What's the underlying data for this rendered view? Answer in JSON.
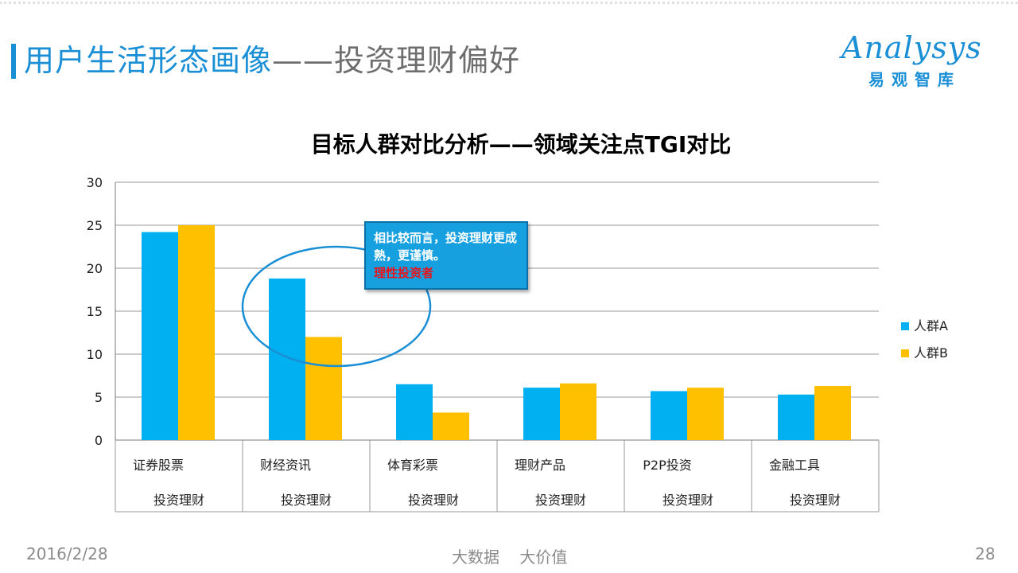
{
  "header": {
    "title_main": "用户生活形态画像",
    "title_sub": "——投资理财偏好"
  },
  "logo": {
    "text": "Analysys",
    "cn": "易观智库"
  },
  "callout": {
    "line1": "相比较而言，投资理财更成熟，更谨慎。",
    "line2": "理性投资者"
  },
  "footer": {
    "date": "2016/2/28",
    "center": "大数据    大价值",
    "page": "28"
  },
  "colors": {
    "accent": "#1a8fd6",
    "series_a": "#00b0f0",
    "series_b": "#ffc000",
    "callout_bg": "#16a0e0",
    "callout_highlight": "#e8141c"
  },
  "chart_data": {
    "type": "bar",
    "title": "目标人群对比分析——领域关注点TGI对比",
    "categories": [
      "证券股票",
      "财经资讯",
      "体育彩票",
      "理财产品",
      "P2P投资",
      "金融工具"
    ],
    "category_group": "投资理财",
    "series": [
      {
        "name": "人群A",
        "color": "#00b0f0",
        "values": [
          24.2,
          18.8,
          6.5,
          6.1,
          5.7,
          5.3
        ]
      },
      {
        "name": "人群B",
        "color": "#ffc000",
        "values": [
          25.0,
          12.0,
          3.2,
          6.6,
          6.1,
          6.3
        ]
      }
    ],
    "yticks": [
      0,
      5,
      10,
      15,
      20,
      25,
      30
    ],
    "ylim": [
      0,
      30
    ],
    "grid": true,
    "legend_position": "right"
  }
}
